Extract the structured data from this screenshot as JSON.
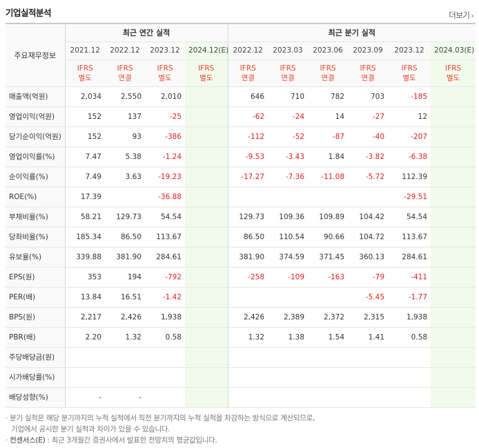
{
  "title": "기업실적분석",
  "more_label": "더보기",
  "header": {
    "row_label": "주요재무정보",
    "annual_group": "최근 연간 실적",
    "quarterly_group": "최근 분기 실적",
    "annual_periods": [
      "2021.12",
      "2022.12",
      "2023.12",
      "2024.12(E)"
    ],
    "quarterly_periods": [
      "2022.12",
      "2023.03",
      "2023.06",
      "2023.09",
      "2023.12",
      "2024.03(E)"
    ],
    "annual_basis": [
      [
        "IFRS",
        "별도"
      ],
      [
        "IFRS",
        "연결"
      ],
      [
        "IFRS",
        "별도"
      ],
      [
        "IFRS",
        "별도"
      ]
    ],
    "quarterly_basis": [
      [
        "IFRS",
        "연결"
      ],
      [
        "IFRS",
        "연결"
      ],
      [
        "IFRS",
        "연결"
      ],
      [
        "IFRS",
        "연결"
      ],
      [
        "IFRS",
        "별도"
      ],
      [
        "IFRS",
        "별도"
      ]
    ]
  },
  "rows": [
    {
      "label": "매출액(억원)",
      "values": [
        "2,034",
        "2,550",
        "2,010",
        "",
        "646",
        "710",
        "782",
        "703",
        "-185",
        ""
      ]
    },
    {
      "label": "영업이익(억원)",
      "values": [
        "152",
        "137",
        "-25",
        "",
        "-62",
        "-24",
        "14",
        "-27",
        "12",
        ""
      ]
    },
    {
      "label": "당기순이익(억원)",
      "values": [
        "152",
        "93",
        "-386",
        "",
        "-112",
        "-52",
        "-87",
        "-40",
        "-207",
        ""
      ]
    },
    {
      "label": "영업이익률(%)",
      "values": [
        "7.47",
        "5.38",
        "-1.24",
        "",
        "-9.53",
        "-3.43",
        "1.84",
        "-3.82",
        "-6.38",
        ""
      ]
    },
    {
      "label": "순이익률(%)",
      "values": [
        "7.49",
        "3.63",
        "-19.23",
        "",
        "-17.27",
        "-7.36",
        "-11.08",
        "-5.72",
        "112.39",
        ""
      ]
    },
    {
      "label": "ROE(%)",
      "values": [
        "17.39",
        "",
        "-36.88",
        "",
        "",
        "",
        "",
        "",
        "-29.51",
        ""
      ]
    },
    {
      "label": "부채비율(%)",
      "values": [
        "58.21",
        "129.73",
        "54.54",
        "",
        "129.73",
        "109.36",
        "109.89",
        "104.42",
        "54.54",
        ""
      ]
    },
    {
      "label": "당좌비율(%)",
      "values": [
        "185.34",
        "86.50",
        "113.67",
        "",
        "86.50",
        "110.54",
        "90.66",
        "104.72",
        "113.67",
        ""
      ]
    },
    {
      "label": "유보율(%)",
      "values": [
        "339.88",
        "381.90",
        "284.61",
        "",
        "381.90",
        "374.59",
        "371.45",
        "360.13",
        "284.61",
        ""
      ]
    },
    {
      "label": "EPS(원)",
      "values": [
        "353",
        "194",
        "-792",
        "",
        "-258",
        "-109",
        "-163",
        "-79",
        "-411",
        ""
      ]
    },
    {
      "label": "PER(배)",
      "values": [
        "13.84",
        "16.51",
        "-1.42",
        "",
        "",
        "",
        "",
        "-5.45",
        "-1.77",
        ""
      ]
    },
    {
      "label": "BPS(원)",
      "values": [
        "2,217",
        "2,426",
        "1,938",
        "",
        "2,426",
        "2,389",
        "2,372",
        "2,315",
        "1,938",
        ""
      ]
    },
    {
      "label": "PBR(배)",
      "values": [
        "2.20",
        "1.32",
        "0.58",
        "",
        "1.32",
        "1.38",
        "1.54",
        "1.41",
        "0.58",
        ""
      ]
    },
    {
      "label": "주당배당금(원)",
      "values": [
        "",
        "",
        "",
        "",
        "",
        "",
        "",
        "",
        "",
        ""
      ]
    },
    {
      "label": "시가배당률(%)",
      "values": [
        "",
        "",
        "",
        "",
        "",
        "",
        "",
        "",
        "",
        ""
      ]
    },
    {
      "label": "배당성향(%)",
      "values": [
        "-",
        "-",
        "",
        "",
        "",
        "",
        "",
        "",
        "",
        ""
      ]
    }
  ],
  "notes": {
    "line1": "분기 실적은 해당 분기까지의 누적 실적에서 직전 분기까지의 누적 실적을 차감하는 방식으로 계산되므로,",
    "line2": "기업에서 공시한 분기 실적과 차이가 있을 수 있습니다.",
    "line3_label": "컨센서스(E)",
    "line3_text": ": 최근 3개월간 증권사에서 발표한 전망치의 평균값입니다."
  },
  "colors": {
    "negative": "#e02020",
    "ifrs": "#e8452b",
    "estimate_bg": "#f2faec"
  }
}
